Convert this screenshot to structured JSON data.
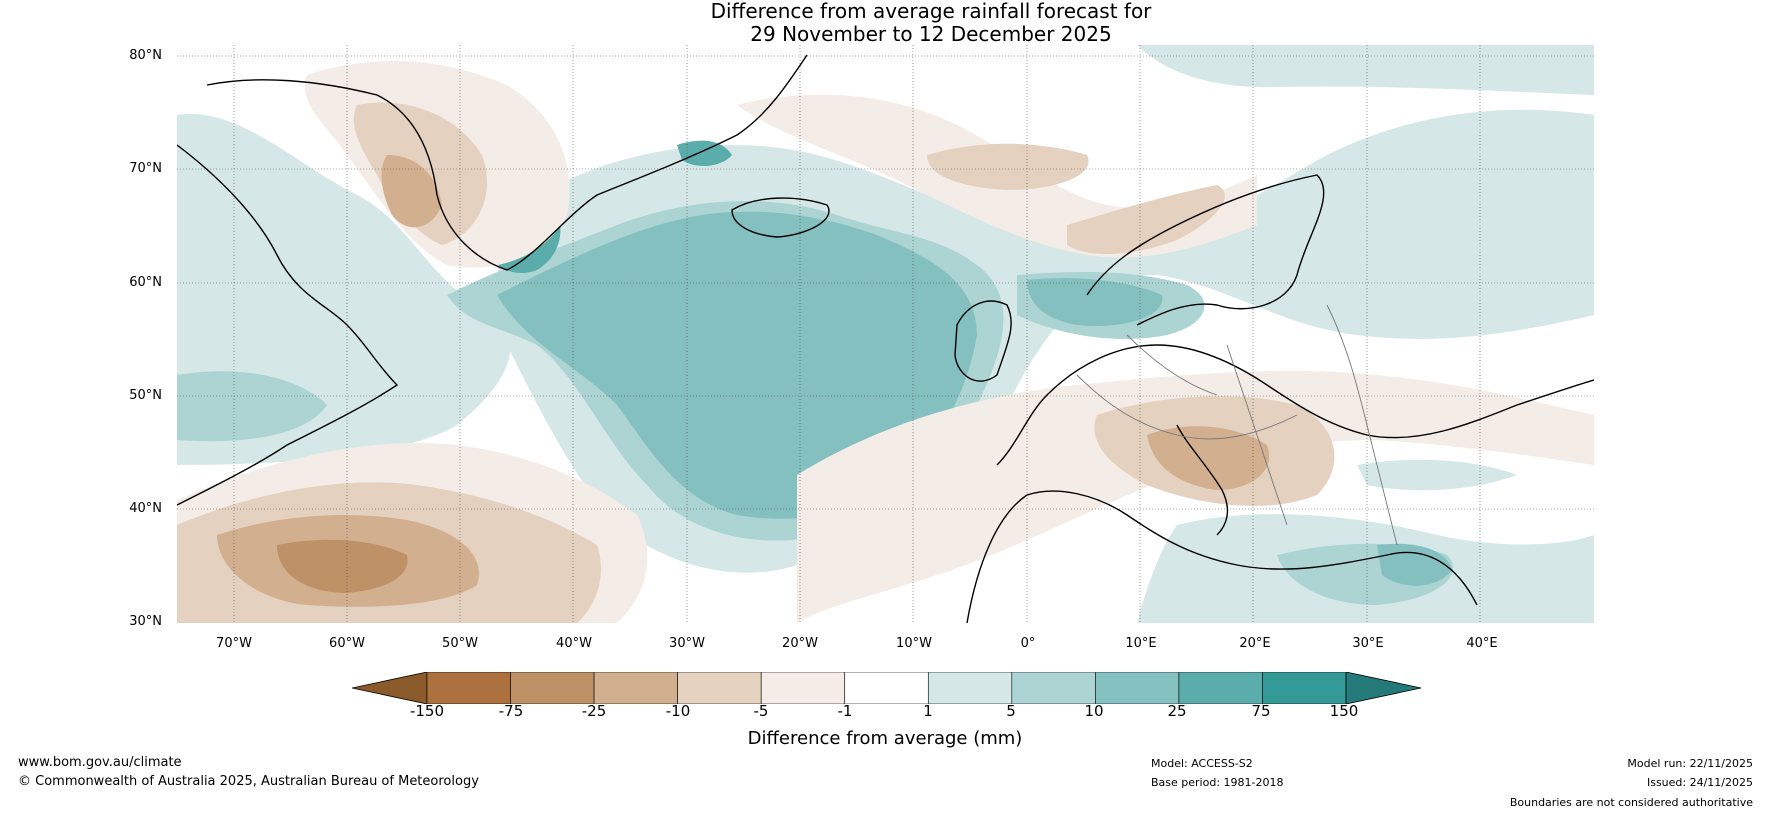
{
  "title": {
    "line1": "Difference from average rainfall forecast for",
    "line2": "29 November to 12 December 2025"
  },
  "map": {
    "lat_labels": [
      "80°N",
      "70°N",
      "60°N",
      "50°N",
      "40°N",
      "30°N"
    ],
    "lon_labels": [
      "70°W",
      "60°W",
      "50°W",
      "40°W",
      "30°W",
      "20°W",
      "10°W",
      "0°",
      "10°E",
      "20°E",
      "30°E",
      "40°E"
    ],
    "extent": {
      "lon_min": -75,
      "lon_max": 50,
      "lat_min": 30,
      "lat_max": 81
    }
  },
  "colorbar": {
    "ticks": [
      "-150",
      "-75",
      "-25",
      "-10",
      "-5",
      "-1",
      "1",
      "5",
      "10",
      "25",
      "75",
      "150"
    ],
    "colors": [
      "#8b5a2b",
      "#ad713f",
      "#bf9167",
      "#d2b08f",
      "#e5d1c0",
      "#f4ece6",
      "#ffffff",
      "#d5e8e7",
      "#acd4d3",
      "#84c0bf",
      "#5badab",
      "#339a97",
      "#247a78"
    ],
    "label": "Difference from average (mm)"
  },
  "footer": {
    "website": "www.bom.gov.au/climate",
    "copyright": "© Commonwealth of Australia 2025, Australian Bureau of Meteorology",
    "model": "Model: ACCESS-S2",
    "base_period": "Base period: 1981-2018",
    "model_run": "Model run: 22/11/2025",
    "issued": "Issued: 24/11/2025",
    "disclaimer": "Boundaries are not considered authoritative"
  }
}
